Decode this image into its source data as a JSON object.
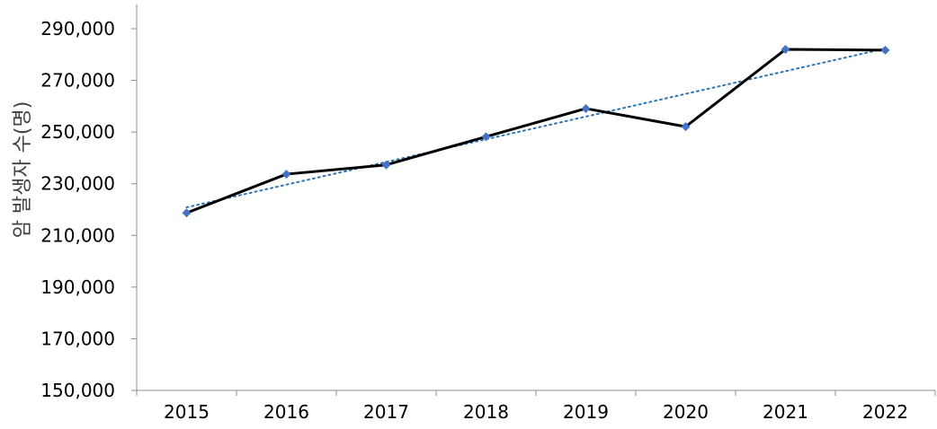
{
  "chart_data": {
    "type": "line",
    "ylabel": "암 발생자 수(명)",
    "xlabel": "",
    "categories": [
      "2015",
      "2016",
      "2017",
      "2018",
      "2019",
      "2020",
      "2021",
      "2022"
    ],
    "series": [
      {
        "values": [
          218700,
          233700,
          237300,
          248200,
          259100,
          252100,
          282000,
          281700
        ],
        "color": "#000000",
        "marker": "diamond",
        "marker_color": "#4472C4"
      }
    ],
    "trendline": {
      "type": "linear",
      "style": "dotted",
      "color": "#2E75B6"
    },
    "ylim": [
      150000,
      290000
    ],
    "ytick_step": 20000,
    "ytick_labels": [
      "150,000",
      "170,000",
      "190,000",
      "210,000",
      "230,000",
      "250,000",
      "270,000",
      "290,000"
    ],
    "grid": false,
    "legend": "none"
  }
}
